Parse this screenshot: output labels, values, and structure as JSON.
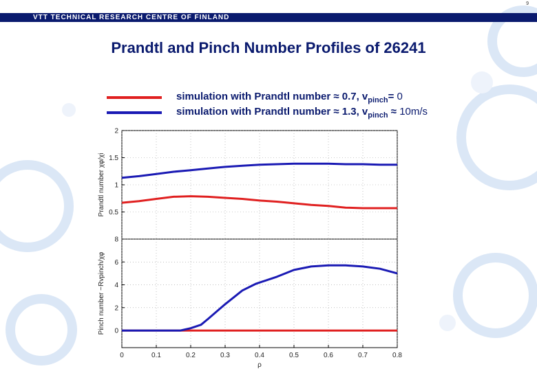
{
  "page_number": "9",
  "header": {
    "org_name": "VTT TECHNICAL RESEARCH CENTRE OF FINLAND"
  },
  "title": "Prandtl and Pinch Number Profiles of 26241",
  "legend": [
    {
      "prefix": "simulation with Prandtl number ≈ 0.7, v",
      "sub": "pinch",
      "suffix_bold": "=",
      "suffix_plain": " 0",
      "color": "#e02020"
    },
    {
      "prefix": "simulation with Prandtl number ≈ 1.3, v",
      "sub": "pinch",
      "suffix_bold": " ≈",
      "suffix_plain": " 10m/s",
      "color": "#1a1ab4"
    }
  ],
  "colors": {
    "red": "#e02020",
    "blue": "#1a1ab4",
    "brand_navy": "#0a1a6e"
  },
  "chart_data": [
    {
      "type": "line",
      "ylabel": "Prandtl number χφ/χi",
      "xlim": [
        0,
        0.8
      ],
      "ylim": [
        0,
        2
      ],
      "yticks": [
        0.5,
        1,
        1.5,
        2
      ],
      "ytick_labels": [
        "0.5",
        "1",
        "1.5",
        "2"
      ],
      "grid": true,
      "series": [
        {
          "color": "#e02020",
          "x": [
            0,
            0.05,
            0.1,
            0.15,
            0.2,
            0.25,
            0.3,
            0.35,
            0.4,
            0.45,
            0.5,
            0.55,
            0.6,
            0.65,
            0.7,
            0.75,
            0.8
          ],
          "y": [
            0.67,
            0.7,
            0.74,
            0.78,
            0.79,
            0.78,
            0.76,
            0.74,
            0.71,
            0.69,
            0.66,
            0.63,
            0.61,
            0.58,
            0.57,
            0.57,
            0.57
          ]
        },
        {
          "color": "#1a1ab4",
          "x": [
            0,
            0.05,
            0.1,
            0.15,
            0.2,
            0.25,
            0.3,
            0.35,
            0.4,
            0.45,
            0.5,
            0.55,
            0.6,
            0.65,
            0.7,
            0.75,
            0.8
          ],
          "y": [
            1.13,
            1.16,
            1.2,
            1.24,
            1.27,
            1.3,
            1.33,
            1.35,
            1.37,
            1.38,
            1.39,
            1.39,
            1.39,
            1.38,
            1.38,
            1.37,
            1.37
          ]
        }
      ]
    },
    {
      "type": "line",
      "ylabel": "Pinch number −Rvpinch/χφ",
      "xlabel": "ρ",
      "xlim": [
        0,
        0.8
      ],
      "ylim": [
        -1.5,
        8
      ],
      "xticks": [
        0,
        0.1,
        0.2,
        0.3,
        0.4,
        0.5,
        0.6,
        0.7,
        0.8
      ],
      "xtick_labels": [
        "0",
        "0.1",
        "0.2",
        "0.3",
        "0.4",
        "0.5",
        "0.6",
        "0.7",
        "0.8"
      ],
      "yticks": [
        0,
        2,
        4,
        6,
        8
      ],
      "ytick_labels": [
        "0",
        "2",
        "4",
        "6",
        "8"
      ],
      "grid": true,
      "series": [
        {
          "color": "#e02020",
          "x": [
            0,
            0.1,
            0.2,
            0.3,
            0.4,
            0.5,
            0.6,
            0.7,
            0.8
          ],
          "y": [
            0,
            0,
            0,
            0,
            0,
            0,
            0,
            0,
            0
          ]
        },
        {
          "color": "#1a1ab4",
          "x": [
            0,
            0.1,
            0.17,
            0.2,
            0.23,
            0.25,
            0.3,
            0.35,
            0.39,
            0.45,
            0.5,
            0.55,
            0.6,
            0.65,
            0.7,
            0.75,
            0.8
          ],
          "y": [
            0,
            0,
            0,
            0.2,
            0.5,
            1.0,
            2.3,
            3.5,
            4.1,
            4.7,
            5.3,
            5.6,
            5.7,
            5.7,
            5.6,
            5.4,
            5.0
          ]
        }
      ]
    }
  ]
}
